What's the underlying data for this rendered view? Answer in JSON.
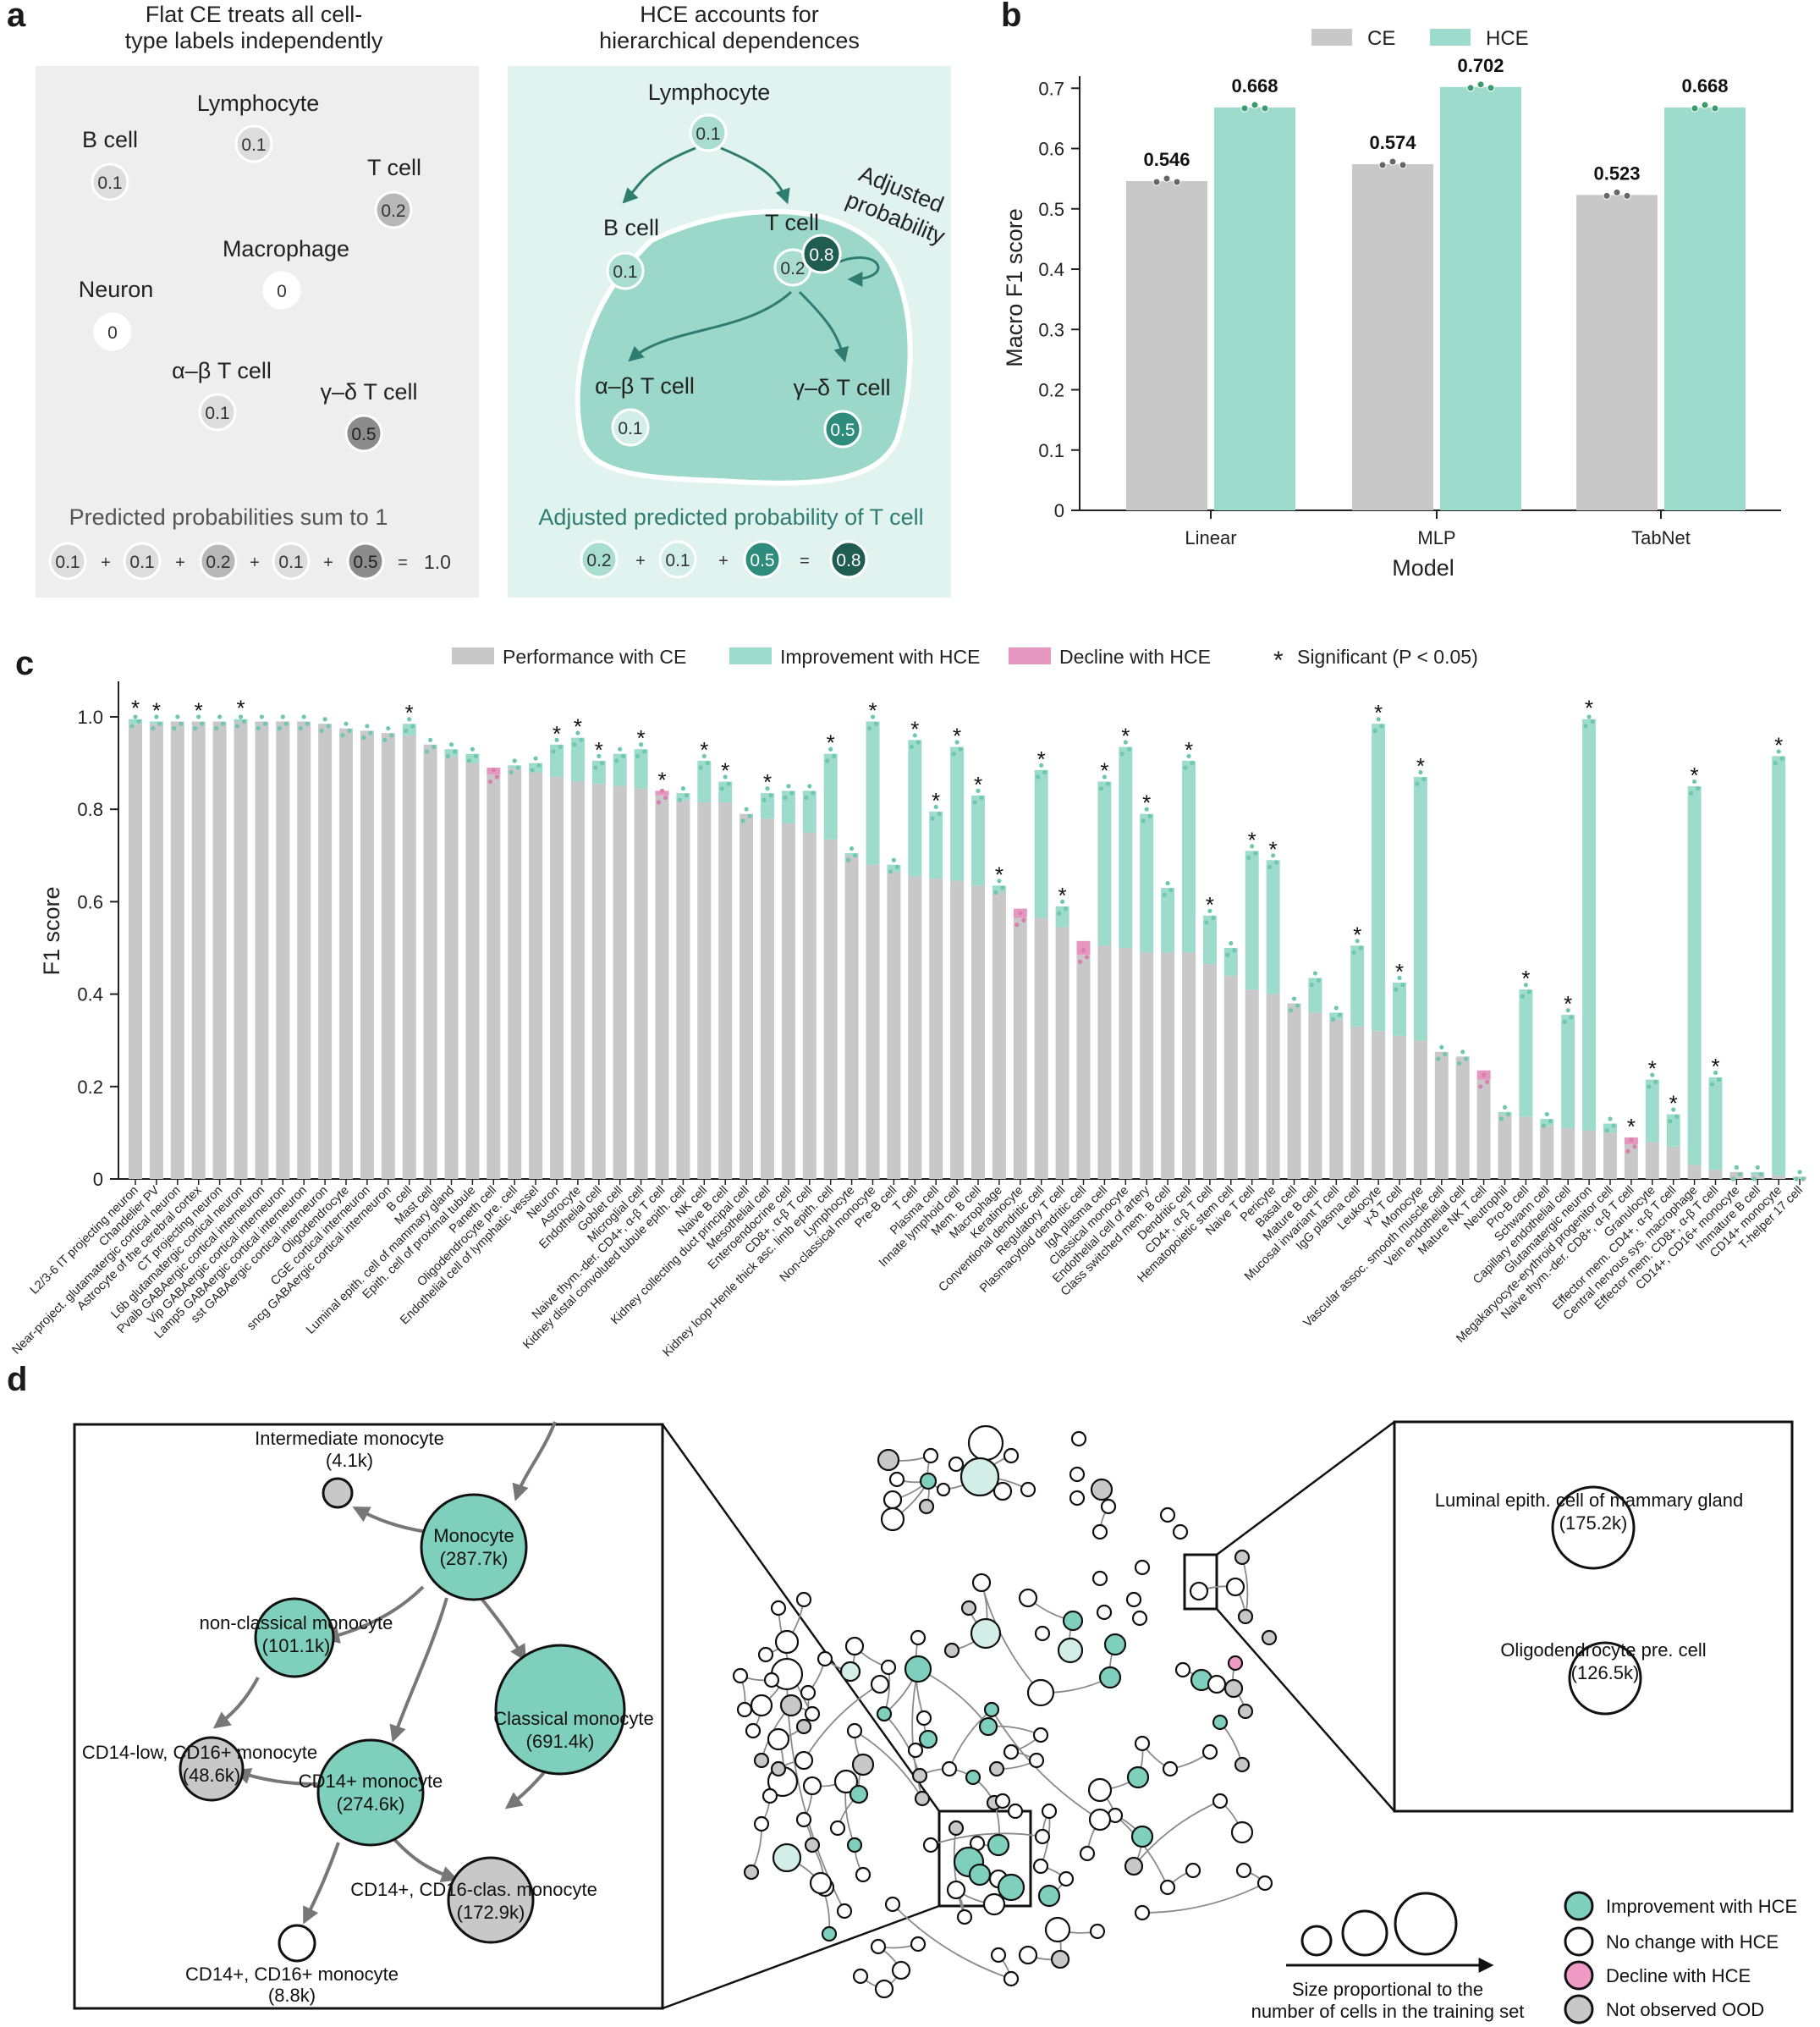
{
  "panel_letters": {
    "a": "a",
    "b": "b",
    "c": "c",
    "d": "d"
  },
  "panel_a": {
    "left": {
      "title": "Flat CE treats all cell-type labels independently",
      "title_l1": "Flat CE treats all cell-",
      "title_l2": "type labels independently",
      "nodes": [
        {
          "label": "Lymphocyte",
          "value": "0.1"
        },
        {
          "label": "B cell",
          "value": "0.1"
        },
        {
          "label": "T cell",
          "value": "0.2"
        },
        {
          "label": "Macrophage",
          "value": "0"
        },
        {
          "label": "Neuron",
          "value": "0"
        },
        {
          "label": "α–β T cell",
          "value": "0.1"
        },
        {
          "label": "γ–δ T cell",
          "value": "0.5"
        }
      ],
      "sum_label": "Predicted probabilities sum to 1",
      "sum_terms": [
        "0.1",
        "0.1",
        "0.2",
        "0.1",
        "0.5"
      ],
      "plus": "+",
      "equals": "=",
      "sum_result": "1.0"
    },
    "right": {
      "title_l1": "HCE accounts for",
      "title_l2": "hierarchical dependences",
      "nodes": [
        {
          "label": "Lymphocyte",
          "value": "0.1"
        },
        {
          "label": "B cell",
          "value": "0.1"
        },
        {
          "label": "T cell",
          "value": "0.2"
        },
        {
          "label": "α–β T cell",
          "value": "0.1"
        },
        {
          "label": "γ–δ T cell",
          "value": "0.5"
        }
      ],
      "adjusted_value": "0.8",
      "adjusted_l1": "Adjusted",
      "adjusted_l2": "probability",
      "sum_label": "Adjusted predicted probability of T cell",
      "sum_terms": [
        "0.2",
        "0.1",
        "0.5"
      ],
      "sum_result": "0.8"
    }
  },
  "chart_data": [
    {
      "type": "bar",
      "panel": "b",
      "title": "",
      "xlabel": "Model",
      "ylabel": "Macro F1 score",
      "categories": [
        "Linear",
        "MLP",
        "TabNet"
      ],
      "series": [
        {
          "name": "CE",
          "values": [
            0.546,
            0.574,
            0.523
          ],
          "color": "#c8c8c8",
          "labels": [
            "0.546",
            "0.574",
            "0.523"
          ]
        },
        {
          "name": "HCE",
          "values": [
            0.668,
            0.702,
            0.668
          ],
          "color": "#9ddbcc",
          "labels": [
            "0.668",
            "0.702",
            "0.668"
          ]
        }
      ],
      "ylim": [
        0,
        0.72
      ],
      "yticks": [
        0,
        0.1,
        0.2,
        0.3,
        0.4,
        0.5,
        0.6,
        0.7
      ],
      "ytick_labels": [
        "0",
        "0.1",
        "0.2",
        "0.3",
        "0.4",
        "0.5",
        "0.6",
        "0.7"
      ],
      "legend_position": "top"
    },
    {
      "type": "bar",
      "panel": "c",
      "ylabel": "F1 score",
      "ylim": [
        0,
        1.05
      ],
      "yticks": [
        0,
        0.2,
        0.4,
        0.6,
        0.8,
        1.0
      ],
      "ytick_labels": [
        "0",
        "0.2",
        "0.4",
        "0.6",
        "0.8",
        "1.0"
      ],
      "legend": [
        "Performance with CE",
        "Improvement with HCE",
        "Decline with HCE",
        "Significant (P < 0.05)"
      ],
      "star": "*",
      "categories": [
        "L2/3-6 IT projecting neuron",
        "Chandelier PV",
        "Near-project. glutamatergic cortical neuron",
        "Astrocyte of the cerebral cortex",
        "CT projecting neuron",
        "L6b glutamatergic cortical neuron",
        "Pvalb GABAergic cortical interneuron",
        "Vip GABAergic cortical interneuron",
        "Lamp5 GABAergic cortical interneuron",
        "sst GABAergic cortical interneuron",
        "Oligodendrocyte",
        "CGE cortical interneuron",
        "sncg GABAergic cortical interneuron",
        "B cell",
        "Mast cell",
        "Luminal epith. cell of mammary gland",
        "Epith. cell of proximal tubule",
        "Paneth cell",
        "Oligodendrocyte pre. cell",
        "Endothelial cell of lymphatic vessel",
        "Neuron",
        "Astrocyte",
        "Endothelial cell",
        "Goblet cell",
        "Microglial cell",
        "Naive thym.-der. CD4+, α-β T cell",
        "Kidney distal convoluted tubule epith. cell",
        "NK cell",
        "Naive B cell",
        "Kidney collecting duct principal cell",
        "Mesothelial cell",
        "Enteroendocrine cell",
        "CD8+, α-β T cell",
        "Kidney loop Henle thick asc. limb epith. cell",
        "Lymphocyte",
        "Non-classical monocyte",
        "Pre-B cell",
        "T cell",
        "Plasma cell",
        "Innate lymphoid cell",
        "Mem. B cell",
        "Macrophage",
        "Keratinocyte",
        "Conventional dendritic cell",
        "Regulatory T cell",
        "Plasmacytoid dendritic cell",
        "IgA plasma cell",
        "Classical monocyte",
        "Endothelial cell of artery",
        "Class switched mem. B cell",
        "Dendritic cell",
        "CD4+, α-β T cell",
        "Hematopoietic stem cell",
        "Naive T cell",
        "Pericyte",
        "Basal cell",
        "Mature B cell",
        "Mucosal invariant T cell",
        "IgG plasma cell",
        "Leukocyte",
        "γ-δ T cell",
        "Monocyte",
        "Vascular assoc. smooth muscle cell",
        "Vein endothelial cell",
        "Mature NK T cell",
        "Neutrophil",
        "Pro-B cell",
        "Schwann cell",
        "Capillary endothelial cell",
        "Glutamatergic neuron",
        "Megakaryocyte-erythroid progenitor cell",
        "Naive thym.-der. CD8+, α-β T cell",
        "Granulocyte",
        "Effector mem. CD4+, α-β T cell",
        "Central nervous sys. macrophage",
        "Effector mem. CD8+, α-β T cell",
        "CD14+, CD16+ monocyte",
        "Immature B cell",
        "CD14+ monocyte",
        "T-helper 17 cell"
      ],
      "ce_values": [
        0.985,
        0.985,
        0.99,
        0.99,
        0.99,
        0.99,
        0.99,
        0.99,
        0.99,
        0.985,
        0.975,
        0.97,
        0.965,
        0.96,
        0.94,
        0.915,
        0.9,
        0.89,
        0.89,
        0.88,
        0.87,
        0.86,
        0.855,
        0.85,
        0.845,
        0.84,
        0.82,
        0.815,
        0.815,
        0.79,
        0.78,
        0.77,
        0.75,
        0.735,
        0.7,
        0.68,
        0.665,
        0.655,
        0.65,
        0.645,
        0.635,
        0.62,
        0.585,
        0.565,
        0.545,
        0.515,
        0.505,
        0.5,
        0.49,
        0.49,
        0.49,
        0.465,
        0.44,
        0.41,
        0.4,
        0.38,
        0.36,
        0.345,
        0.33,
        0.32,
        0.31,
        0.3,
        0.275,
        0.265,
        0.235,
        0.14,
        0.135,
        0.115,
        0.11,
        0.105,
        0.1,
        0.09,
        0.08,
        0.07,
        0.03,
        0.02,
        0.015,
        0.01,
        0.008,
        0.005
      ],
      "hce_values": [
        0.995,
        0.99,
        0.99,
        0.99,
        0.99,
        0.995,
        0.99,
        0.99,
        0.99,
        0.985,
        0.975,
        0.97,
        0.965,
        0.985,
        0.94,
        0.93,
        0.92,
        0.875,
        0.895,
        0.9,
        0.94,
        0.955,
        0.905,
        0.92,
        0.93,
        0.83,
        0.835,
        0.905,
        0.86,
        0.79,
        0.835,
        0.84,
        0.84,
        0.92,
        0.705,
        0.99,
        0.68,
        0.95,
        0.795,
        0.935,
        0.83,
        0.635,
        0.565,
        0.885,
        0.59,
        0.485,
        0.86,
        0.935,
        0.79,
        0.63,
        0.905,
        0.57,
        0.5,
        0.71,
        0.69,
        0.38,
        0.435,
        0.36,
        0.505,
        0.985,
        0.425,
        0.87,
        0.275,
        0.265,
        0.215,
        0.145,
        0.41,
        0.13,
        0.355,
        0.995,
        0.12,
        0.075,
        0.215,
        0.14,
        0.85,
        0.22,
        0.015,
        0.015,
        0.915,
        0.005
      ],
      "significant": [
        1,
        1,
        0,
        1,
        0,
        1,
        0,
        0,
        0,
        0,
        0,
        0,
        0,
        1,
        0,
        0,
        0,
        0,
        0,
        0,
        1,
        1,
        1,
        0,
        1,
        1,
        0,
        1,
        1,
        0,
        1,
        0,
        0,
        1,
        0,
        1,
        0,
        1,
        1,
        1,
        1,
        1,
        0,
        1,
        1,
        0,
        1,
        1,
        1,
        0,
        1,
        1,
        0,
        1,
        1,
        0,
        0,
        0,
        1,
        1,
        1,
        1,
        0,
        0,
        0,
        0,
        1,
        0,
        1,
        1,
        0,
        1,
        1,
        1,
        1,
        1,
        0,
        0,
        1,
        0
      ]
    }
  ],
  "panel_d": {
    "left_nodes": [
      {
        "label": "Intermediate monocyte",
        "count": "(4.1k)"
      },
      {
        "label": "Monocyte",
        "count": "(287.7k)"
      },
      {
        "label": "non-classical monocyte",
        "count": "(101.1k)"
      },
      {
        "label": "Classical monocyte",
        "count": "(691.4k)"
      },
      {
        "label": "CD14-low, CD16+ monocyte",
        "count": "(48.6k)"
      },
      {
        "label": "CD14+ monocyte",
        "count": "(274.6k)"
      },
      {
        "label": "CD14+, CD16-clas. monocyte",
        "count": "(172.9k)"
      },
      {
        "label": "CD14+, CD16+ monocyte",
        "count": "(8.8k)"
      }
    ],
    "right_nodes": [
      {
        "label": "Luminal epith. cell of mammary gland",
        "count": "(175.2k)"
      },
      {
        "label": "Oligodendrocyte pre. cell",
        "count": "(126.5k)"
      }
    ],
    "size_caption_l1": "Size proportional to the",
    "size_caption_l2": "number of cells in the training set",
    "legend": [
      {
        "label": "Improvement with HCE",
        "color": "#7fcfbd"
      },
      {
        "label": "No change with HCE",
        "color": "#ffffff"
      },
      {
        "label": "Decline with HCE",
        "color": "#ef9bc6"
      },
      {
        "label": "Not observed OOD",
        "color": "#c8c8c8"
      }
    ]
  },
  "colors": {
    "ce": "#c8c8c8",
    "hce": "#9ddbcc",
    "decline": "#e597c0",
    "teal_dark": "#1f5c52",
    "teal_mid": "#2e8c7c",
    "panel_bg_left": "#eeeeee",
    "panel_bg_right": "#e0f3ef"
  }
}
